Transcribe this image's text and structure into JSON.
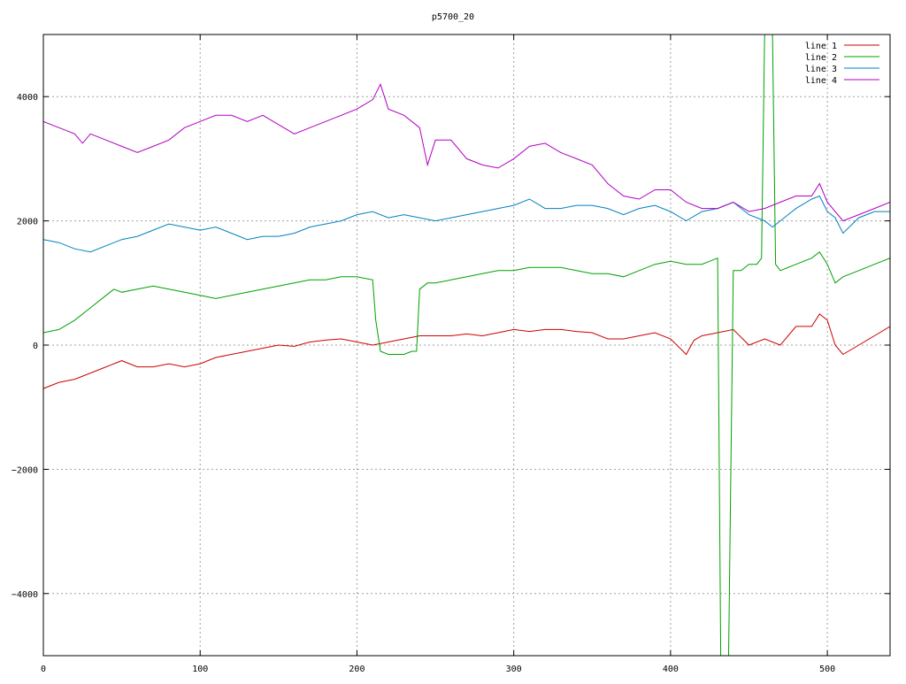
{
  "chart_data": {
    "type": "line",
    "title": "p5700_20",
    "xlabel": "",
    "ylabel": "",
    "xlim": [
      0,
      540
    ],
    "ylim": [
      -5000,
      5000
    ],
    "x_ticks": [
      0,
      100,
      200,
      300,
      400,
      500
    ],
    "y_ticks": [
      -4000,
      -2000,
      0,
      2000,
      4000
    ],
    "grid": true,
    "legend_position": "top-right",
    "series": [
      {
        "name": "line 1",
        "color": "#cc0000",
        "x": [
          0,
          10,
          20,
          30,
          40,
          50,
          60,
          70,
          80,
          90,
          100,
          110,
          120,
          130,
          140,
          150,
          160,
          170,
          180,
          190,
          200,
          210,
          220,
          230,
          240,
          250,
          260,
          270,
          280,
          290,
          300,
          310,
          320,
          330,
          340,
          350,
          360,
          370,
          380,
          390,
          400,
          410,
          415,
          420,
          430,
          440,
          450,
          460,
          470,
          480,
          490,
          495,
          500,
          505,
          510,
          520,
          530,
          540
        ],
        "y": [
          -700,
          -600,
          -550,
          -450,
          -350,
          -250,
          -350,
          -350,
          -300,
          -350,
          -300,
          -200,
          -150,
          -100,
          -50,
          0,
          -20,
          50,
          80,
          100,
          50,
          0,
          50,
          100,
          150,
          150,
          150,
          180,
          150,
          200,
          250,
          220,
          250,
          250,
          220,
          200,
          100,
          100,
          150,
          200,
          100,
          -150,
          80,
          150,
          200,
          250,
          0,
          100,
          0,
          300,
          300,
          500,
          400,
          0,
          -150,
          0,
          150,
          300
        ]
      },
      {
        "name": "line 2",
        "color": "#00a000",
        "x": [
          0,
          10,
          20,
          30,
          40,
          45,
          50,
          60,
          70,
          80,
          90,
          100,
          110,
          120,
          130,
          140,
          150,
          160,
          170,
          180,
          190,
          200,
          210,
          212,
          215,
          220,
          230,
          235,
          238,
          240,
          245,
          250,
          260,
          270,
          280,
          290,
          300,
          310,
          320,
          330,
          340,
          350,
          360,
          370,
          380,
          390,
          400,
          410,
          420,
          425,
          430,
          432,
          435,
          437,
          440,
          445,
          450,
          455,
          458,
          460,
          462,
          465,
          467,
          470,
          480,
          490,
          495,
          500,
          505,
          510,
          520,
          530,
          540
        ],
        "y": [
          200,
          250,
          400,
          600,
          800,
          900,
          850,
          900,
          950,
          900,
          850,
          800,
          750,
          800,
          850,
          900,
          950,
          1000,
          1050,
          1050,
          1100,
          1100,
          1050,
          400,
          -100,
          -150,
          -150,
          -100,
          -100,
          900,
          1000,
          1000,
          1050,
          1100,
          1150,
          1200,
          1200,
          1250,
          1250,
          1250,
          1200,
          1150,
          1150,
          1100,
          1200,
          1300,
          1350,
          1300,
          1300,
          1350,
          1400,
          -5000,
          -5000,
          -5000,
          1200,
          1200,
          1300,
          1300,
          1400,
          5000,
          5000,
          5000,
          1300,
          1200,
          1300,
          1400,
          1500,
          1300,
          1000,
          1100,
          1200,
          1300,
          1400
        ]
      },
      {
        "name": "line 3",
        "color": "#0080c0",
        "x": [
          0,
          10,
          20,
          30,
          40,
          50,
          60,
          70,
          80,
          90,
          100,
          110,
          120,
          130,
          140,
          150,
          160,
          170,
          180,
          190,
          200,
          210,
          220,
          230,
          240,
          250,
          260,
          270,
          280,
          290,
          300,
          310,
          320,
          330,
          340,
          350,
          360,
          370,
          380,
          390,
          400,
          410,
          420,
          430,
          440,
          450,
          460,
          465,
          470,
          480,
          490,
          495,
          500,
          505,
          510,
          520,
          530,
          540
        ],
        "y": [
          1700,
          1650,
          1550,
          1500,
          1600,
          1700,
          1750,
          1850,
          1950,
          1900,
          1850,
          1900,
          1800,
          1700,
          1750,
          1750,
          1800,
          1900,
          1950,
          2000,
          2100,
          2150,
          2050,
          2100,
          2050,
          2000,
          2050,
          2100,
          2150,
          2200,
          2250,
          2350,
          2200,
          2200,
          2250,
          2250,
          2200,
          2100,
          2200,
          2250,
          2150,
          2000,
          2150,
          2200,
          2300,
          2100,
          2000,
          1900,
          2000,
          2200,
          2350,
          2400,
          2150,
          2050,
          1800,
          2050,
          2150,
          2150
        ]
      },
      {
        "name": "line 4",
        "color": "#b000c0",
        "x": [
          0,
          10,
          20,
          25,
          30,
          40,
          50,
          60,
          70,
          80,
          90,
          100,
          110,
          120,
          130,
          140,
          150,
          160,
          170,
          180,
          190,
          200,
          210,
          215,
          220,
          230,
          240,
          245,
          250,
          260,
          270,
          280,
          290,
          300,
          310,
          320,
          330,
          340,
          350,
          360,
          370,
          380,
          390,
          400,
          410,
          420,
          430,
          440,
          450,
          460,
          470,
          480,
          490,
          495,
          500,
          510,
          520,
          530,
          540
        ],
        "y": [
          3600,
          3500,
          3400,
          3250,
          3400,
          3300,
          3200,
          3100,
          3200,
          3300,
          3500,
          3600,
          3700,
          3700,
          3600,
          3700,
          3550,
          3400,
          3500,
          3600,
          3700,
          3800,
          3950,
          4200,
          3800,
          3700,
          3500,
          2900,
          3300,
          3300,
          3000,
          2900,
          2850,
          3000,
          3200,
          3250,
          3100,
          3000,
          2900,
          2600,
          2400,
          2350,
          2500,
          2500,
          2300,
          2200,
          2200,
          2300,
          2150,
          2200,
          2300,
          2400,
          2400,
          2600,
          2300,
          2000,
          2100,
          2200,
          2300
        ]
      }
    ]
  }
}
